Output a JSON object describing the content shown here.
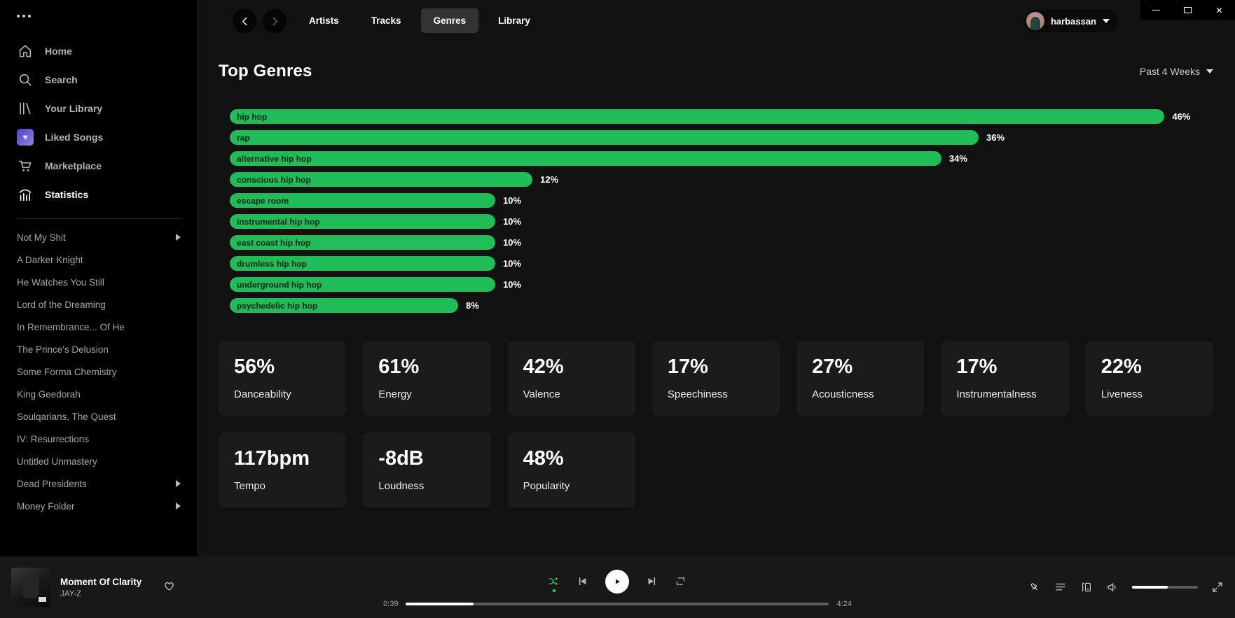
{
  "colors": {
    "accent_green": "#1fbc57",
    "shuffle_active": "#1ed760",
    "background": "#121212",
    "sidebar": "#000000",
    "card": "#1b1b1b",
    "player_bar": "#181818"
  },
  "icons": {
    "window_close_glyph": "✕"
  },
  "sidebar": {
    "nav": [
      {
        "label": "Home",
        "icon": "home",
        "active": false
      },
      {
        "label": "Search",
        "icon": "search",
        "active": false
      },
      {
        "label": "Your Library",
        "icon": "library",
        "active": false
      },
      {
        "label": "Liked Songs",
        "icon": "liked-heart",
        "active": false
      },
      {
        "label": "Marketplace",
        "icon": "cart",
        "active": false
      },
      {
        "label": "Statistics",
        "icon": "stats-chart",
        "active": true
      }
    ],
    "playlists": [
      {
        "label": "Not My Shit",
        "expandable": true
      },
      {
        "label": "A Darker Knight",
        "expandable": false
      },
      {
        "label": "He Watches You Still",
        "expandable": false
      },
      {
        "label": "Lord of the Dreaming",
        "expandable": false
      },
      {
        "label": "In Remembrance... Of He",
        "expandable": false
      },
      {
        "label": "The Prince's Delusion",
        "expandable": false
      },
      {
        "label": "Some Forma Chemistry",
        "expandable": false
      },
      {
        "label": "King Geedorah",
        "expandable": false
      },
      {
        "label": "Soulqarians, The Quest",
        "expandable": false
      },
      {
        "label": "IV: Resurrections",
        "expandable": false
      },
      {
        "label": "Untitled Unmastery",
        "expandable": false
      },
      {
        "label": "Dead Presidents",
        "expandable": true
      },
      {
        "label": "Money Folder",
        "expandable": true
      }
    ]
  },
  "topbar": {
    "tabs": [
      {
        "label": "Artists",
        "active": false
      },
      {
        "label": "Tracks",
        "active": false
      },
      {
        "label": "Genres",
        "active": true
      },
      {
        "label": "Library",
        "active": false
      }
    ],
    "user": {
      "name": "harbassan"
    }
  },
  "page": {
    "title": "Top Genres",
    "range_label": "Past 4 Weeks"
  },
  "chart_data": {
    "type": "bar",
    "orientation": "horizontal",
    "title": "Top Genres",
    "categories": [
      "hip hop",
      "rap",
      "alternative hip hop",
      "conscious hip hop",
      "escape room",
      "instrumental hip hop",
      "east coast hip hop",
      "drumless hip hop",
      "underground hip hop",
      "psychedelic hip hop"
    ],
    "values": [
      46,
      36,
      34,
      12,
      10,
      10,
      10,
      10,
      10,
      8
    ],
    "value_labels": [
      "46%",
      "36%",
      "34%",
      "12%",
      "10%",
      "10%",
      "10%",
      "10%",
      "10%",
      "8%"
    ],
    "unit": "%",
    "xlim": [
      0,
      46
    ],
    "bar_color": "#1fbc57",
    "grid": false,
    "legend": false
  },
  "stats_cards": [
    {
      "value": "56%",
      "label": "Danceability"
    },
    {
      "value": "61%",
      "label": "Energy"
    },
    {
      "value": "42%",
      "label": "Valence"
    },
    {
      "value": "17%",
      "label": "Speechiness"
    },
    {
      "value": "27%",
      "label": "Acousticness"
    },
    {
      "value": "17%",
      "label": "Instrumentalness"
    },
    {
      "value": "22%",
      "label": "Liveness"
    },
    {
      "value": "117bpm",
      "label": "Tempo"
    },
    {
      "value": "-8dB",
      "label": "Loudness"
    },
    {
      "value": "48%",
      "label": "Popularity"
    }
  ],
  "player": {
    "track": {
      "title": "Moment Of Clarity",
      "artist": "JAY-Z"
    },
    "time_elapsed": "0:39",
    "time_total": "4:24",
    "progress_percent": 16,
    "volume_percent": 54,
    "shuffle_active": true
  }
}
